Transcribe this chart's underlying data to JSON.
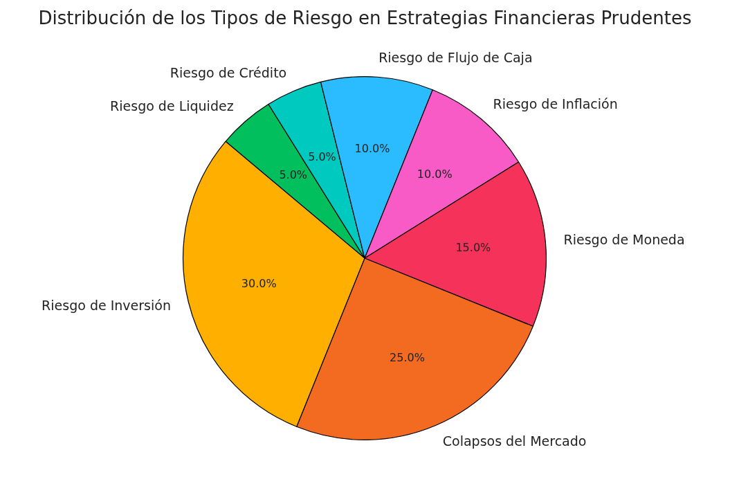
{
  "chart_data": {
    "type": "pie",
    "title": "Distribución de los Tipos de Riesgo en Estrategias Financieras Prudentes",
    "categories": [
      "Riesgo de Liquidez",
      "Riesgo de Crédito",
      "Riesgo de Flujo de Caja",
      "Riesgo de Inflación",
      "Riesgo de Moneda",
      "Colapsos del Mercado",
      "Riesgo de Inversión"
    ],
    "values": [
      5,
      5,
      10,
      10,
      15,
      25,
      30
    ],
    "value_labels": [
      "5.0%",
      "5.0%",
      "10.0%",
      "10.0%",
      "15.0%",
      "25.0%",
      "30.0%"
    ],
    "colors": [
      "#00bf5c",
      "#00c9c0",
      "#2bbcff",
      "#f95bc6",
      "#f5325a",
      "#f26b21",
      "#ffaf00"
    ],
    "legend": false
  }
}
